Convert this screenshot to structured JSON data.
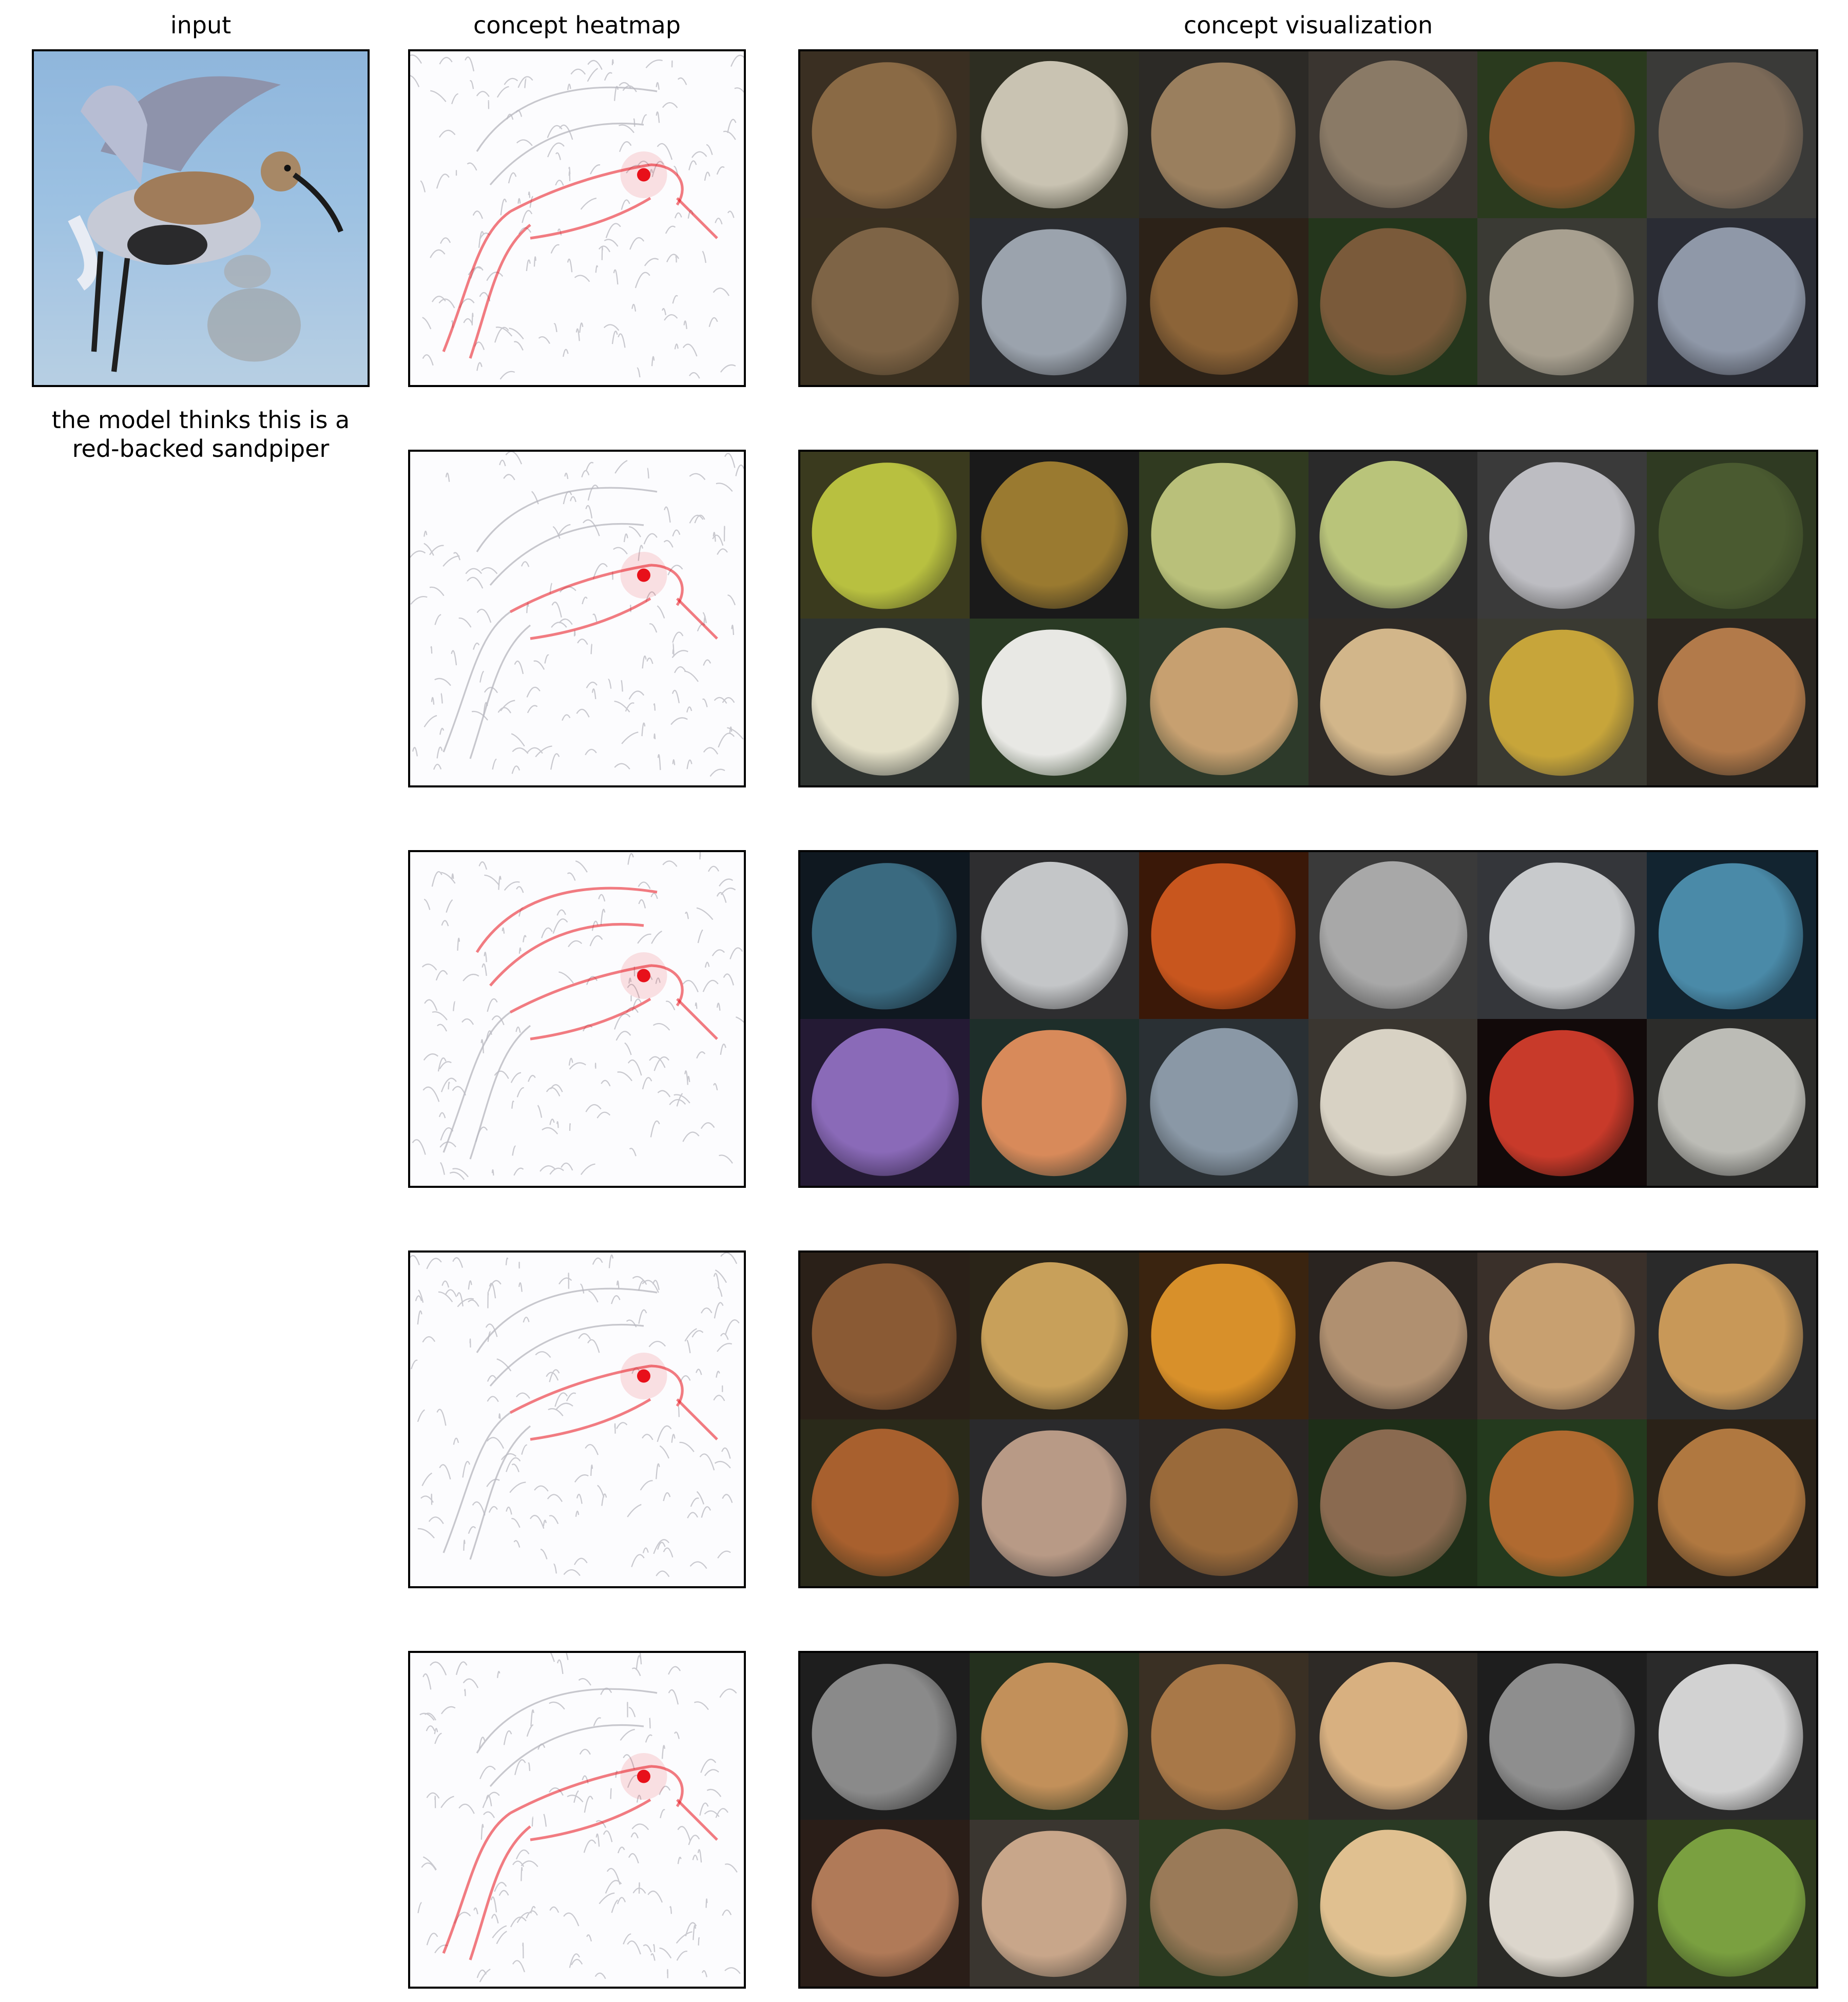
{
  "headers": {
    "input": "input",
    "heatmap": "concept heatmap",
    "concept": "concept visualization"
  },
  "caption": {
    "line1": "the model thinks this is a",
    "line2": "red-backed sandpiper"
  },
  "colors": {
    "heat": "#e8101a",
    "edge": "#c9c9cf",
    "frame": "#000000"
  },
  "rows": [
    {
      "cells": [
        {
          "bg": "#3a2f22",
          "fg": "#8a6a45"
        },
        {
          "bg": "#2e2e22",
          "fg": "#c9c3b2"
        },
        {
          "bg": "#2c2a26",
          "fg": "#9a7f5e"
        },
        {
          "bg": "#3a3530",
          "fg": "#8a7a66"
        },
        {
          "bg": "#2a3a1e",
          "fg": "#8e5a30"
        },
        {
          "bg": "#3a3a38",
          "fg": "#7c6a58"
        },
        {
          "bg": "#3a3020",
          "fg": "#7e6446"
        },
        {
          "bg": "#2a2c30",
          "fg": "#9ba3ad"
        },
        {
          "bg": "#2c2218",
          "fg": "#8c6438"
        },
        {
          "bg": "#24361c",
          "fg": "#7a5a3a"
        },
        {
          "bg": "#3a3a34",
          "fg": "#a8a090"
        },
        {
          "bg": "#2a2c34",
          "fg": "#8f98a8"
        }
      ]
    },
    {
      "cells": [
        {
          "bg": "#3a3a1e",
          "fg": "#b8c040"
        },
        {
          "bg": "#1a1a1a",
          "fg": "#9a7a30"
        },
        {
          "bg": "#303a20",
          "fg": "#b9c07a"
        },
        {
          "bg": "#2a2a2a",
          "fg": "#b9c47a"
        },
        {
          "bg": "#3a3a3a",
          "fg": "#bdbdc2"
        },
        {
          "bg": "#2f3a22",
          "fg": "#4a5a30"
        },
        {
          "bg": "#2e3330",
          "fg": "#e4e0c8"
        },
        {
          "bg": "#2a3a24",
          "fg": "#e8e8e4"
        },
        {
          "bg": "#2d3a2a",
          "fg": "#c7a070"
        },
        {
          "bg": "#2e2a26",
          "fg": "#d2b68a"
        },
        {
          "bg": "#3a3a32",
          "fg": "#c7a53a"
        },
        {
          "bg": "#2a2620",
          "fg": "#b27a4a"
        }
      ]
    },
    {
      "cells": [
        {
          "bg": "#0f1820",
          "fg": "#3a6a80"
        },
        {
          "bg": "#2e2e30",
          "fg": "#c4c6c8"
        },
        {
          "bg": "#3a1808",
          "fg": "#c8561e"
        },
        {
          "bg": "#3a3a3a",
          "fg": "#a8a8a8"
        },
        {
          "bg": "#34363a",
          "fg": "#c8cacc"
        },
        {
          "bg": "#122430",
          "fg": "#4a8aa8"
        },
        {
          "bg": "#241a34",
          "fg": "#8a6ab8"
        },
        {
          "bg": "#1e2e2a",
          "fg": "#d88a5a"
        },
        {
          "bg": "#2a3034",
          "fg": "#8a98a6"
        },
        {
          "bg": "#3a3630",
          "fg": "#d8d2c4"
        },
        {
          "bg": "#120a0a",
          "fg": "#c83a2a"
        },
        {
          "bg": "#2c2c2a",
          "fg": "#bcbcb6"
        }
      ]
    },
    {
      "cells": [
        {
          "bg": "#2a2018",
          "fg": "#8a5a34"
        },
        {
          "bg": "#2a2418",
          "fg": "#c8a05a"
        },
        {
          "bg": "#3a2410",
          "fg": "#d8902a"
        },
        {
          "bg": "#2a2420",
          "fg": "#b09070"
        },
        {
          "bg": "#3a302a",
          "fg": "#c8a070"
        },
        {
          "bg": "#2a2a2a",
          "fg": "#c89858"
        },
        {
          "bg": "#2a2a1a",
          "fg": "#a8602e"
        },
        {
          "bg": "#2a2a2c",
          "fg": "#b89a86"
        },
        {
          "bg": "#2a2624",
          "fg": "#9a6a3a"
        },
        {
          "bg": "#1e2e18",
          "fg": "#8a6a50"
        },
        {
          "bg": "#243a1e",
          "fg": "#b06a30"
        },
        {
          "bg": "#2a2218",
          "fg": "#b07840"
        }
      ]
    },
    {
      "cells": [
        {
          "bg": "#1e1e1e",
          "fg": "#8a8a8a"
        },
        {
          "bg": "#24301e",
          "fg": "#c2905a"
        },
        {
          "bg": "#3a3024",
          "fg": "#a87848"
        },
        {
          "bg": "#2e2a26",
          "fg": "#d8b080"
        },
        {
          "bg": "#1e1e1e",
          "fg": "#8e8e8e"
        },
        {
          "bg": "#2a2a2a",
          "fg": "#d2d2d2"
        },
        {
          "bg": "#2a1e18",
          "fg": "#b07a58"
        },
        {
          "bg": "#3a3630",
          "fg": "#c8a68a"
        },
        {
          "bg": "#2a3a20",
          "fg": "#9a7a58"
        },
        {
          "bg": "#2a3a24",
          "fg": "#e0c090"
        },
        {
          "bg": "#2a2a26",
          "fg": "#dcd6cc"
        },
        {
          "bg": "#2e3a1e",
          "fg": "#7aa040"
        }
      ]
    }
  ]
}
